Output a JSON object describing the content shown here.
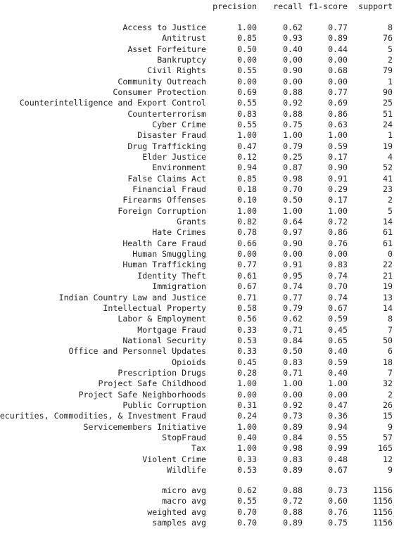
{
  "header": {
    "precision": "precision",
    "recall": "recall",
    "f1": "f1-score",
    "support": "support"
  },
  "rows": [
    {
      "label": "Access to Justice",
      "precision": "1.00",
      "recall": "0.62",
      "f1": "0.77",
      "support": "8"
    },
    {
      "label": "Antitrust",
      "precision": "0.85",
      "recall": "0.93",
      "f1": "0.89",
      "support": "76"
    },
    {
      "label": "Asset Forfeiture",
      "precision": "0.50",
      "recall": "0.40",
      "f1": "0.44",
      "support": "5"
    },
    {
      "label": "Bankruptcy",
      "precision": "0.00",
      "recall": "0.00",
      "f1": "0.00",
      "support": "2"
    },
    {
      "label": "Civil Rights",
      "precision": "0.55",
      "recall": "0.90",
      "f1": "0.68",
      "support": "79"
    },
    {
      "label": "Community Outreach",
      "precision": "0.00",
      "recall": "0.00",
      "f1": "0.00",
      "support": "1"
    },
    {
      "label": "Consumer Protection",
      "precision": "0.69",
      "recall": "0.88",
      "f1": "0.77",
      "support": "90"
    },
    {
      "label": "Counterintelligence and Export Control",
      "precision": "0.55",
      "recall": "0.92",
      "f1": "0.69",
      "support": "25"
    },
    {
      "label": "Counterterrorism",
      "precision": "0.83",
      "recall": "0.88",
      "f1": "0.86",
      "support": "51"
    },
    {
      "label": "Cyber Crime",
      "precision": "0.55",
      "recall": "0.75",
      "f1": "0.63",
      "support": "24"
    },
    {
      "label": "Disaster Fraud",
      "precision": "1.00",
      "recall": "1.00",
      "f1": "1.00",
      "support": "1"
    },
    {
      "label": "Drug Trafficking",
      "precision": "0.47",
      "recall": "0.79",
      "f1": "0.59",
      "support": "19"
    },
    {
      "label": "Elder Justice",
      "precision": "0.12",
      "recall": "0.25",
      "f1": "0.17",
      "support": "4"
    },
    {
      "label": "Environment",
      "precision": "0.94",
      "recall": "0.87",
      "f1": "0.90",
      "support": "52"
    },
    {
      "label": "False Claims Act",
      "precision": "0.85",
      "recall": "0.98",
      "f1": "0.91",
      "support": "41"
    },
    {
      "label": "Financial Fraud",
      "precision": "0.18",
      "recall": "0.70",
      "f1": "0.29",
      "support": "23"
    },
    {
      "label": "Firearms Offenses",
      "precision": "0.10",
      "recall": "0.50",
      "f1": "0.17",
      "support": "2"
    },
    {
      "label": "Foreign Corruption",
      "precision": "1.00",
      "recall": "1.00",
      "f1": "1.00",
      "support": "5"
    },
    {
      "label": "Grants",
      "precision": "0.82",
      "recall": "0.64",
      "f1": "0.72",
      "support": "14"
    },
    {
      "label": "Hate Crimes",
      "precision": "0.78",
      "recall": "0.97",
      "f1": "0.86",
      "support": "61"
    },
    {
      "label": "Health Care Fraud",
      "precision": "0.66",
      "recall": "0.90",
      "f1": "0.76",
      "support": "61"
    },
    {
      "label": "Human Smuggling",
      "precision": "0.00",
      "recall": "0.00",
      "f1": "0.00",
      "support": "0"
    },
    {
      "label": "Human Trafficking",
      "precision": "0.77",
      "recall": "0.91",
      "f1": "0.83",
      "support": "22"
    },
    {
      "label": "Identity Theft",
      "precision": "0.61",
      "recall": "0.95",
      "f1": "0.74",
      "support": "21"
    },
    {
      "label": "Immigration",
      "precision": "0.67",
      "recall": "0.74",
      "f1": "0.70",
      "support": "19"
    },
    {
      "label": "Indian Country Law and Justice",
      "precision": "0.71",
      "recall": "0.77",
      "f1": "0.74",
      "support": "13"
    },
    {
      "label": "Intellectual Property",
      "precision": "0.58",
      "recall": "0.79",
      "f1": "0.67",
      "support": "14"
    },
    {
      "label": "Labor & Employment",
      "precision": "0.56",
      "recall": "0.62",
      "f1": "0.59",
      "support": "8"
    },
    {
      "label": "Mortgage Fraud",
      "precision": "0.33",
      "recall": "0.71",
      "f1": "0.45",
      "support": "7"
    },
    {
      "label": "National Security",
      "precision": "0.53",
      "recall": "0.84",
      "f1": "0.65",
      "support": "50"
    },
    {
      "label": "Office and Personnel Updates",
      "precision": "0.33",
      "recall": "0.50",
      "f1": "0.40",
      "support": "6"
    },
    {
      "label": "Opioids",
      "precision": "0.45",
      "recall": "0.83",
      "f1": "0.59",
      "support": "18"
    },
    {
      "label": "Prescription Drugs",
      "precision": "0.28",
      "recall": "0.71",
      "f1": "0.40",
      "support": "7"
    },
    {
      "label": "Project Safe Childhood",
      "precision": "1.00",
      "recall": "1.00",
      "f1": "1.00",
      "support": "32"
    },
    {
      "label": "Project Safe Neighborhoods",
      "precision": "0.00",
      "recall": "0.00",
      "f1": "0.00",
      "support": "2"
    },
    {
      "label": "Public Corruption",
      "precision": "0.31",
      "recall": "0.92",
      "f1": "0.47",
      "support": "26"
    },
    {
      "label": "Securities, Commodities, & Investment Fraud",
      "precision": "0.24",
      "recall": "0.73",
      "f1": "0.36",
      "support": "15"
    },
    {
      "label": "Servicemembers Initiative",
      "precision": "1.00",
      "recall": "0.89",
      "f1": "0.94",
      "support": "9"
    },
    {
      "label": "StopFraud",
      "precision": "0.40",
      "recall": "0.84",
      "f1": "0.55",
      "support": "57"
    },
    {
      "label": "Tax",
      "precision": "1.00",
      "recall": "0.98",
      "f1": "0.99",
      "support": "165"
    },
    {
      "label": "Violent Crime",
      "precision": "0.33",
      "recall": "0.83",
      "f1": "0.48",
      "support": "12"
    },
    {
      "label": "Wildlife",
      "precision": "0.53",
      "recall": "0.89",
      "f1": "0.67",
      "support": "9"
    }
  ],
  "averages": [
    {
      "label": "micro avg",
      "precision": "0.62",
      "recall": "0.88",
      "f1": "0.73",
      "support": "1156"
    },
    {
      "label": "macro avg",
      "precision": "0.55",
      "recall": "0.72",
      "f1": "0.60",
      "support": "1156"
    },
    {
      "label": "weighted avg",
      "precision": "0.70",
      "recall": "0.88",
      "f1": "0.76",
      "support": "1156"
    },
    {
      "label": "samples avg",
      "precision": "0.70",
      "recall": "0.89",
      "f1": "0.75",
      "support": "1156"
    }
  ]
}
